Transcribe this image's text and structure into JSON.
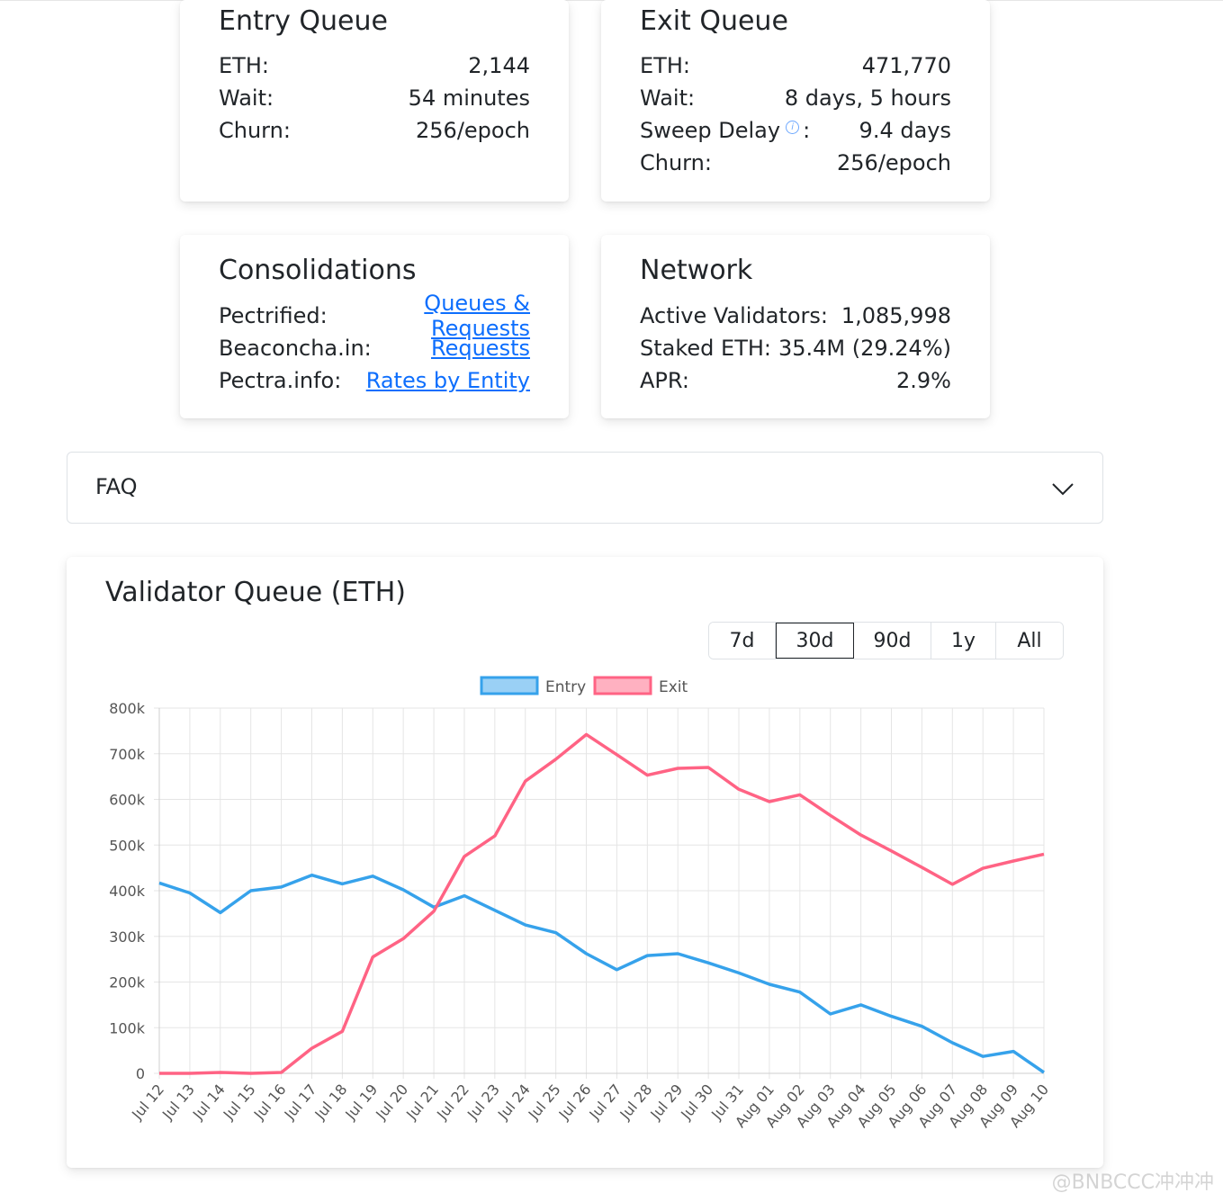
{
  "entry_queue": {
    "title": "Entry Queue",
    "rows": [
      {
        "label": "ETH:",
        "value": "2,144"
      },
      {
        "label": "Wait:",
        "value": "54 minutes"
      },
      {
        "label": "Churn:",
        "value": "256/epoch"
      }
    ]
  },
  "exit_queue": {
    "title": "Exit Queue",
    "eth_label": "ETH:",
    "eth_value": "471,770",
    "wait_label": "Wait:",
    "wait_value": "8 days, 5 hours",
    "sweep_label": "Sweep Delay",
    "sweep_suffix": ":",
    "sweep_value": "9.4 days",
    "sweep_icon": "info-icon",
    "churn_label": "Churn:",
    "churn_value": "256/epoch"
  },
  "consolidations": {
    "title": "Consolidations",
    "rows": [
      {
        "label": "Pectrified:",
        "link": "Queues & Requests"
      },
      {
        "label": "Beaconcha.in:",
        "link": "Requests"
      },
      {
        "label": "Pectra.info:",
        "link": "Rates by Entity"
      }
    ]
  },
  "network": {
    "title": "Network",
    "rows": [
      {
        "label": "Active Validators:",
        "value": "1,085,998"
      },
      {
        "label": "Staked ETH:",
        "value": "35.4M (29.24%)"
      },
      {
        "label": "APR:",
        "value": "2.9%"
      }
    ]
  },
  "faq": {
    "label": "FAQ",
    "icon": "chevron-down-icon"
  },
  "ranges": {
    "options": [
      "7d",
      "30d",
      "90d",
      "1y",
      "All"
    ],
    "selected": "30d"
  },
  "watermark": "@BNBCCC冲冲冲",
  "colors": {
    "entry": "#36a2eb",
    "exit": "#ff6384",
    "link": "#0d6efd"
  },
  "chart_data": {
    "type": "line",
    "title": "Validator Queue (ETH)",
    "categories": [
      "Jul 12",
      "Jul 13",
      "Jul 14",
      "Jul 15",
      "Jul 16",
      "Jul 17",
      "Jul 18",
      "Jul 19",
      "Jul 20",
      "Jul 21",
      "Jul 22",
      "Jul 23",
      "Jul 24",
      "Jul 25",
      "Jul 26",
      "Jul 27",
      "Jul 28",
      "Jul 29",
      "Jul 30",
      "Jul 31",
      "Aug 01",
      "Aug 02",
      "Aug 03",
      "Aug 04",
      "Aug 05",
      "Aug 06",
      "Aug 07",
      "Aug 08",
      "Aug 09",
      "Aug 10"
    ],
    "series": [
      {
        "name": "Entry",
        "color": "#36a2eb",
        "values": [
          417000,
          395000,
          352000,
          400000,
          408000,
          434000,
          415000,
          432000,
          402000,
          364000,
          389000,
          357000,
          325000,
          308000,
          262000,
          227000,
          258000,
          262000,
          242000,
          220000,
          195000,
          178000,
          130000,
          150000,
          125000,
          103000,
          67000,
          37000,
          48000,
          2000
        ]
      },
      {
        "name": "Exit",
        "color": "#ff6384",
        "values": [
          0,
          0,
          2000,
          0,
          2000,
          55000,
          92000,
          255000,
          295000,
          355000,
          475000,
          520000,
          640000,
          688000,
          742000,
          698000,
          653000,
          668000,
          670000,
          622000,
          595000,
          610000,
          565000,
          522000,
          487000,
          451000,
          414000,
          449000,
          465000,
          480000
        ]
      }
    ],
    "ylim": [
      0,
      800000
    ],
    "yticks": [
      "0",
      "100k",
      "200k",
      "300k",
      "400k",
      "500k",
      "600k",
      "700k",
      "800k"
    ],
    "ytick_values": [
      0,
      100000,
      200000,
      300000,
      400000,
      500000,
      600000,
      700000,
      800000
    ],
    "legend": "top",
    "grid": true
  }
}
